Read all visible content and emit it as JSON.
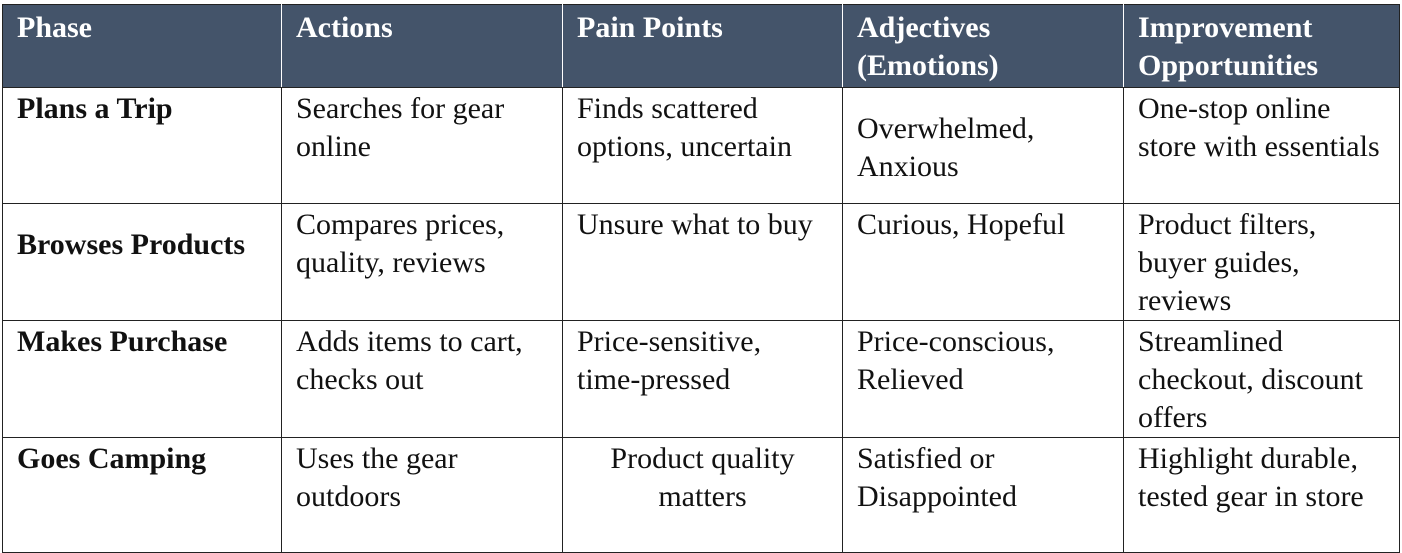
{
  "table": {
    "headers": [
      "Phase",
      "Actions",
      "Pain Points",
      "Adjectives (Emotions)",
      "Improvement Opportunities"
    ],
    "rows": [
      {
        "phase": "Plans a Trip",
        "actions": "Searches for gear online",
        "pain_points": "Finds scattered options, uncertain",
        "adjectives": "Overwhelmed, Anxious",
        "improvements": "One-stop online store with essentials"
      },
      {
        "phase": "Browses Products",
        "actions": "Compares prices, quality, reviews",
        "pain_points": "Unsure what to buy",
        "adjectives": "Curious, Hopeful",
        "improvements": "Product filters, buyer guides, reviews"
      },
      {
        "phase": "Makes Purchase",
        "actions": "Adds items to cart, checks out",
        "pain_points": "Price-sensitive, time-pressed",
        "adjectives": "Price-conscious, Relieved",
        "improvements": "Streamlined checkout, discount offers"
      },
      {
        "phase": "Goes Camping",
        "actions": "Uses the gear outdoors",
        "pain_points": "Product quality matters",
        "adjectives": "Satisfied or Disappointed",
        "improvements": "Highlight durable, tested gear in store"
      }
    ]
  }
}
